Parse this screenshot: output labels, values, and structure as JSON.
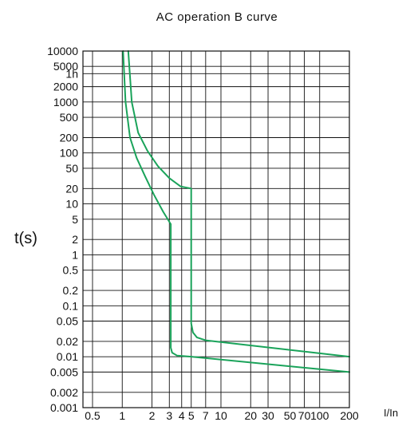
{
  "chart_data": {
    "type": "line",
    "title": "AC  operation  B  curve",
    "xlabel": "I/In",
    "ylabel": "t(s)",
    "x_scale": "log",
    "y_scale": "log",
    "xlim": [
      0.4,
      200
    ],
    "ylim": [
      0.001,
      10000
    ],
    "grid": true,
    "x_ticks": [
      {
        "value": 0.5,
        "label": "0.5"
      },
      {
        "value": 1,
        "label": "1"
      },
      {
        "value": 2,
        "label": "2"
      },
      {
        "value": 3,
        "label": "3"
      },
      {
        "value": 4,
        "label": "4"
      },
      {
        "value": 5,
        "label": "5"
      },
      {
        "value": 7,
        "label": "7"
      },
      {
        "value": 10,
        "label": "10"
      },
      {
        "value": 20,
        "label": "20"
      },
      {
        "value": 30,
        "label": "30"
      },
      {
        "value": 50,
        "label": "50"
      },
      {
        "value": 70,
        "label": "70"
      },
      {
        "value": 100,
        "label": "100"
      },
      {
        "value": 200,
        "label": "200"
      }
    ],
    "y_ticks": [
      {
        "value": 10000,
        "label": "10000"
      },
      {
        "value": 5000,
        "label": "5000"
      },
      {
        "value": 3600,
        "label": "1h"
      },
      {
        "value": 2000,
        "label": "2000"
      },
      {
        "value": 1000,
        "label": "1000"
      },
      {
        "value": 500,
        "label": "500"
      },
      {
        "value": 200,
        "label": "200"
      },
      {
        "value": 100,
        "label": "100"
      },
      {
        "value": 50,
        "label": "50"
      },
      {
        "value": 20,
        "label": "20"
      },
      {
        "value": 10,
        "label": "10"
      },
      {
        "value": 5,
        "label": "5"
      },
      {
        "value": 2,
        "label": "2"
      },
      {
        "value": 1,
        "label": "1"
      },
      {
        "value": 0.5,
        "label": "0.5"
      },
      {
        "value": 0.2,
        "label": "0.2"
      },
      {
        "value": 0.1,
        "label": "0.1"
      },
      {
        "value": 0.05,
        "label": "0.05"
      },
      {
        "value": 0.02,
        "label": "0.02"
      },
      {
        "value": 0.01,
        "label": "0.01"
      },
      {
        "value": 0.005,
        "label": "0.005"
      },
      {
        "value": 0.002,
        "label": "0.002"
      },
      {
        "value": 0.001,
        "label": "0.001"
      }
    ],
    "curve_color": "#1aa35a",
    "series": [
      {
        "points": [
          {
            "x": 1.02,
            "y": 10000
          },
          {
            "x": 1.08,
            "y": 1000
          },
          {
            "x": 1.2,
            "y": 200
          },
          {
            "x": 1.4,
            "y": 80
          },
          {
            "x": 1.7,
            "y": 35
          },
          {
            "x": 2.1,
            "y": 15
          },
          {
            "x": 2.6,
            "y": 7
          },
          {
            "x": 3.1,
            "y": 4
          },
          {
            "x": 3.1,
            "y": 0.015
          },
          {
            "x": 3.2,
            "y": 0.012
          },
          {
            "x": 3.6,
            "y": 0.0105
          },
          {
            "x": 5,
            "y": 0.01
          },
          {
            "x": 200,
            "y": 0.005
          }
        ]
      },
      {
        "points": [
          {
            "x": 1.15,
            "y": 10000
          },
          {
            "x": 1.25,
            "y": 1000
          },
          {
            "x": 1.45,
            "y": 250
          },
          {
            "x": 1.8,
            "y": 110
          },
          {
            "x": 2.3,
            "y": 55
          },
          {
            "x": 3.0,
            "y": 32
          },
          {
            "x": 3.9,
            "y": 22
          },
          {
            "x": 5.0,
            "y": 20
          },
          {
            "x": 5.0,
            "y": 0.045
          },
          {
            "x": 5.2,
            "y": 0.03
          },
          {
            "x": 5.7,
            "y": 0.024
          },
          {
            "x": 7,
            "y": 0.021
          },
          {
            "x": 200,
            "y": 0.01
          }
        ]
      }
    ]
  }
}
